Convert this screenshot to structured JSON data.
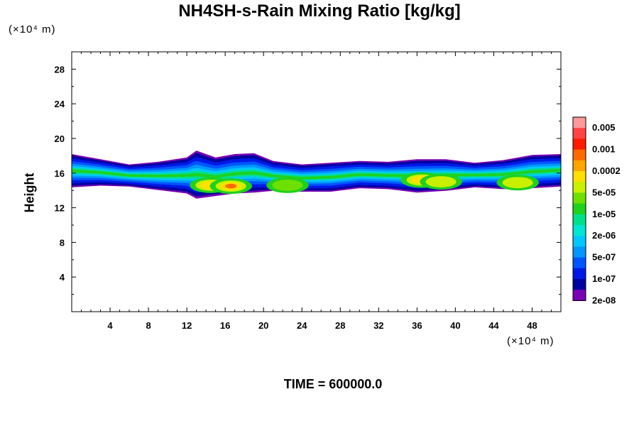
{
  "chart_data": {
    "type": "heatmap",
    "title": "NH4SH-s-Rain Mixing Ratio [kg/kg]",
    "xlabel": "",
    "ylabel": "Height",
    "x_unit": "(×10⁴ m)",
    "y_unit": "(×10⁴ m)",
    "xlim": [
      0,
      51
    ],
    "ylim": [
      0,
      30
    ],
    "x_ticks": [
      4,
      8,
      12,
      16,
      20,
      24,
      28,
      32,
      36,
      40,
      44,
      48
    ],
    "y_ticks": [
      4,
      8,
      12,
      16,
      20,
      24,
      28
    ],
    "grid": false,
    "time_label": "TIME = 600000.0",
    "colorbar": {
      "labels": [
        "0.005",
        "0.001",
        "0.0002",
        "5e-05",
        "1e-05",
        "2e-06",
        "5e-07",
        "1e-07",
        "2e-08"
      ],
      "colors": [
        "#ff9a9a",
        "#ff4444",
        "#ff1a00",
        "#ff6a00",
        "#ffa500",
        "#ffe000",
        "#c8f000",
        "#6ee000",
        "#1ed21e",
        "#00e08c",
        "#00e6d2",
        "#00c8ff",
        "#0096ff",
        "#0055ff",
        "#0018e6",
        "#0000a0",
        "#7a00b4"
      ]
    },
    "layer": {
      "x": [
        0,
        3,
        6,
        9,
        12,
        13,
        15,
        17,
        19,
        21,
        24,
        27,
        30,
        33,
        36,
        39,
        42,
        45,
        48,
        51
      ],
      "top": [
        18.2,
        17.6,
        17.0,
        17.3,
        17.8,
        18.6,
        17.8,
        18.2,
        18.3,
        17.4,
        17.0,
        17.2,
        17.4,
        17.3,
        17.6,
        17.6,
        17.2,
        17.5,
        18.1,
        18.2
      ],
      "bottom": [
        14.5,
        14.7,
        14.6,
        14.2,
        13.8,
        13.2,
        13.5,
        13.8,
        13.9,
        14.1,
        14.0,
        14.0,
        14.4,
        14.3,
        13.9,
        14.1,
        14.5,
        14.3,
        14.4,
        14.6
      ]
    },
    "cores": [
      {
        "x": 14.5,
        "y": 14.6,
        "level": 5
      },
      {
        "x": 16.6,
        "y": 14.5,
        "level": 3
      },
      {
        "x": 22.5,
        "y": 14.6,
        "level": 7
      },
      {
        "x": 36.5,
        "y": 15.2,
        "level": 5
      },
      {
        "x": 38.5,
        "y": 15.0,
        "level": 6
      },
      {
        "x": 46.5,
        "y": 14.9,
        "level": 6
      }
    ]
  }
}
